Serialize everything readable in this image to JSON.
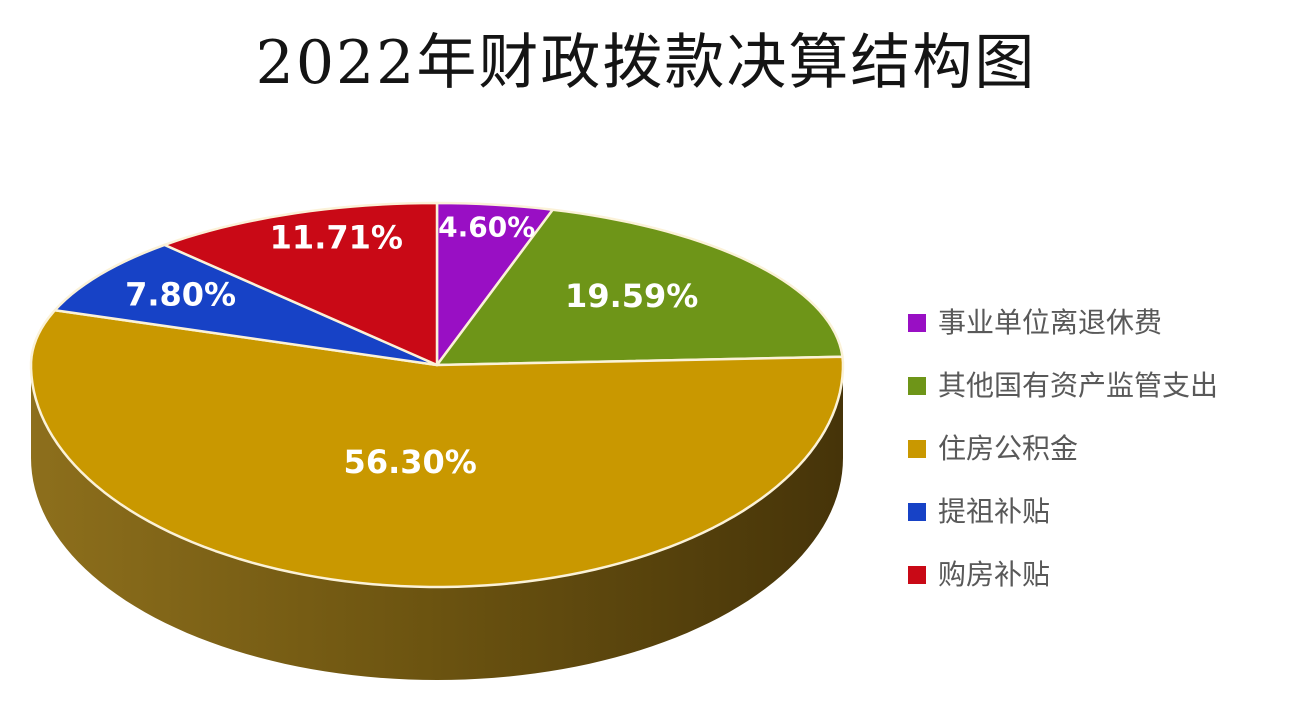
{
  "title": "2022年财政拨款决算结构图",
  "chart_data": {
    "type": "pie",
    "title": "2022年财政拨款决算结构图",
    "is_3d": true,
    "direction": "clockwise",
    "start_angle_deg": 0,
    "legend_position": "right",
    "label_color": "#ffffff",
    "separator_color": "#FBF2D8",
    "legend_text_color": "#595959",
    "side_wall_gradient": [
      "#8D6F1C",
      "#6B5310",
      "#463409"
    ],
    "slices": [
      {
        "label": "事业单位离退休费",
        "value": 4.6,
        "display": "4.60%",
        "color": "#990FC4"
      },
      {
        "label": "其他国有资产监管支出",
        "value": 19.59,
        "display": "19.59%",
        "color": "#6E9518"
      },
      {
        "label": "住房公积金",
        "value": 56.3,
        "display": "56.30%",
        "color": "#C99800"
      },
      {
        "label": "提祖补贴",
        "value": 7.8,
        "display": "7.80%",
        "color": "#1742C6"
      },
      {
        "label": "购房补贴",
        "value": 11.71,
        "display": "11.71%",
        "color": "#C90916"
      }
    ]
  }
}
